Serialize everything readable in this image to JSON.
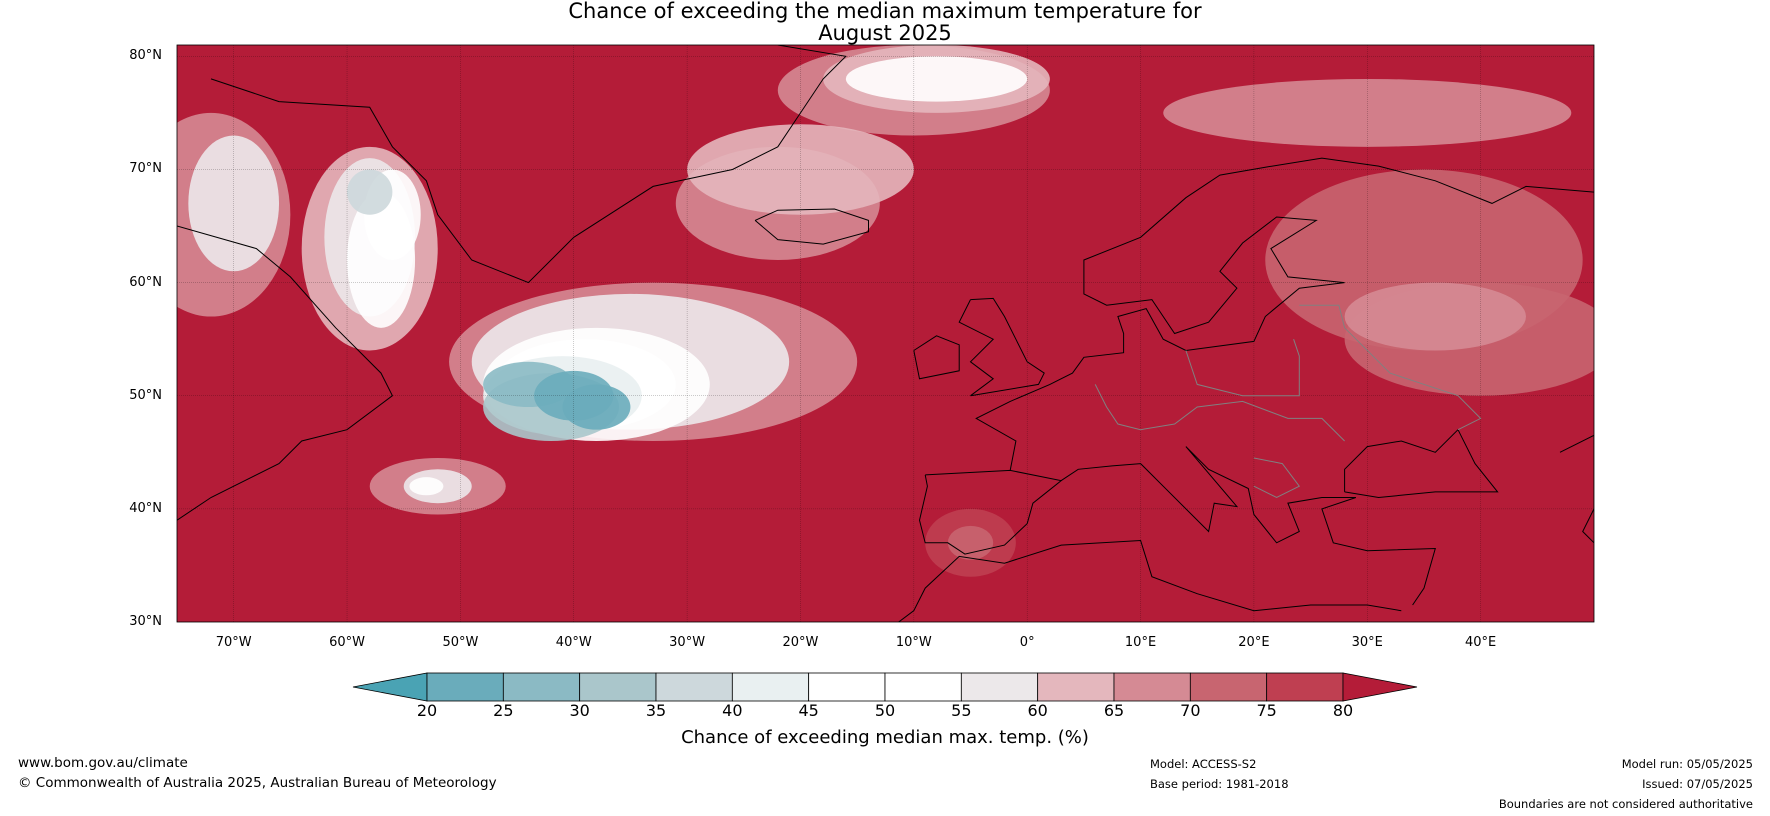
{
  "title": {
    "line1": "Chance of exceeding the median maximum temperature for",
    "line2": "August 2025"
  },
  "map": {
    "projection": "equirectangular",
    "lat_range": [
      30,
      81
    ],
    "lon_range": [
      -75,
      50
    ],
    "lat_ticks": [
      "30°N",
      "40°N",
      "50°N",
      "60°N",
      "70°N",
      "80°N"
    ],
    "lon_ticks": [
      "70°W",
      "60°W",
      "50°W",
      "40°W",
      "30°W",
      "20°W",
      "10°W",
      "0°",
      "10°E",
      "20°E",
      "30°E",
      "40°E"
    ],
    "background_color": "#b41c38",
    "coastline_color": "#000000",
    "border_color": "#808080"
  },
  "colorbar": {
    "ticks": [
      "20",
      "25",
      "30",
      "35",
      "40",
      "45",
      "50",
      "55",
      "60",
      "65",
      "70",
      "75",
      "80"
    ],
    "colors": [
      "#4aa3b4",
      "#6aacbb",
      "#8bbac4",
      "#aac6cb",
      "#cdd8dc",
      "#e9f0f1",
      "#ffffff",
      "#ffffff",
      "#ece8ea",
      "#e4b7bd",
      "#d58a94",
      "#c86570",
      "#bf3f51",
      "#b41c38"
    ],
    "label": "Chance of exceeding median max. temp. (%)"
  },
  "footer": {
    "url": "www.bom.gov.au/climate",
    "copyright": "© Commonwealth of Australia 2025, Australian Bureau of Meteorology",
    "model": "Model: ACCESS-S2",
    "base_period": "Base period: 1981-2018",
    "model_run": "Model run: 05/05/2025",
    "issued": "Issued: 07/05/2025",
    "disclaimer": "Boundaries are not considered authoritative"
  }
}
